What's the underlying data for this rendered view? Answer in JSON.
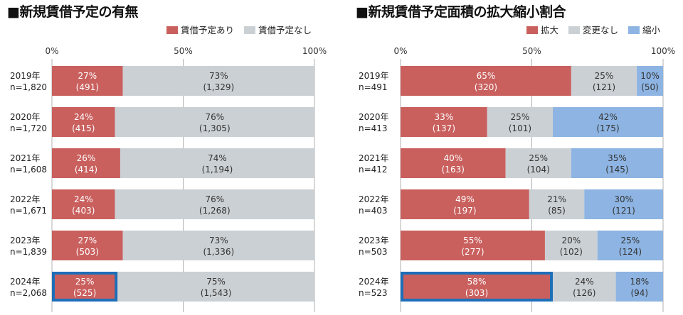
{
  "chart_data": [
    {
      "type": "bar",
      "orientation": "horizontal-stacked-100",
      "title": "■新規賃借予定の有無",
      "xlim": [
        0,
        100
      ],
      "x_ticks": [
        "0%",
        "50%",
        "100%"
      ],
      "legend_position": "top-right",
      "categories": [
        {
          "year": "2019年",
          "n": "n=1,820"
        },
        {
          "year": "2020年",
          "n": "n=1,720"
        },
        {
          "year": "2021年",
          "n": "n=1,608"
        },
        {
          "year": "2022年",
          "n": "n=1,671"
        },
        {
          "year": "2023年",
          "n": "n=1,839"
        },
        {
          "year": "2024年",
          "n": "n=2,068"
        }
      ],
      "series": [
        {
          "name": "賃借予定あり",
          "color": "#c9605e",
          "text_color": "#ffffff",
          "values": [
            27,
            24,
            26,
            24,
            27,
            25
          ],
          "pct_labels": [
            "27%",
            "24%",
            "26%",
            "24%",
            "27%",
            "25%"
          ],
          "count_labels": [
            "(491)",
            "(415)",
            "(414)",
            "(403)",
            "(503)",
            "(525)"
          ]
        },
        {
          "name": "賃借予定なし",
          "color": "#cbd0d4",
          "text_color": "#333333",
          "values": [
            73,
            76,
            74,
            76,
            73,
            75
          ],
          "pct_labels": [
            "73%",
            "76%",
            "74%",
            "76%",
            "73%",
            "75%"
          ],
          "count_labels": [
            "(1,329)",
            "(1,305)",
            "(1,194)",
            "(1,268)",
            "(1,336)",
            "(1,543)"
          ]
        }
      ],
      "highlight": {
        "row": 5,
        "series": 0,
        "color": "#1d6fb8"
      }
    },
    {
      "type": "bar",
      "orientation": "horizontal-stacked-100",
      "title": "■新規賃借予定面積の拡大縮小割合",
      "xlim": [
        0,
        100
      ],
      "x_ticks": [
        "0%",
        "50%",
        "100%"
      ],
      "legend_position": "top-right",
      "categories": [
        {
          "year": "2019年",
          "n": "n=491"
        },
        {
          "year": "2020年",
          "n": "n=413"
        },
        {
          "year": "2021年",
          "n": "n=412"
        },
        {
          "year": "2022年",
          "n": "n=403"
        },
        {
          "year": "2023年",
          "n": "n=503"
        },
        {
          "year": "2024年",
          "n": "n=523"
        }
      ],
      "series": [
        {
          "name": "拡大",
          "color": "#c9605e",
          "text_color": "#ffffff",
          "values": [
            65,
            33,
            40,
            49,
            55,
            58
          ],
          "pct_labels": [
            "65%",
            "33%",
            "40%",
            "49%",
            "55%",
            "58%"
          ],
          "count_labels": [
            "(320)",
            "(137)",
            "(163)",
            "(197)",
            "(277)",
            "(303)"
          ]
        },
        {
          "name": "変更なし",
          "color": "#cbd0d4",
          "text_color": "#333333",
          "values": [
            25,
            25,
            25,
            21,
            20,
            24
          ],
          "pct_labels": [
            "25%",
            "25%",
            "25%",
            "21%",
            "20%",
            "24%"
          ],
          "count_labels": [
            "(121)",
            "(101)",
            "(104)",
            "(85)",
            "(102)",
            "(126)"
          ]
        },
        {
          "name": "縮小",
          "color": "#8db4e2",
          "text_color": "#333333",
          "values": [
            10,
            42,
            35,
            30,
            25,
            18
          ],
          "pct_labels": [
            "10%",
            "42%",
            "35%",
            "30%",
            "25%",
            "18%"
          ],
          "count_labels": [
            "(50)",
            "(175)",
            "(145)",
            "(121)",
            "(124)",
            "(94)"
          ]
        }
      ],
      "highlight": {
        "row": 5,
        "series": 0,
        "color": "#1d6fb8"
      }
    }
  ]
}
